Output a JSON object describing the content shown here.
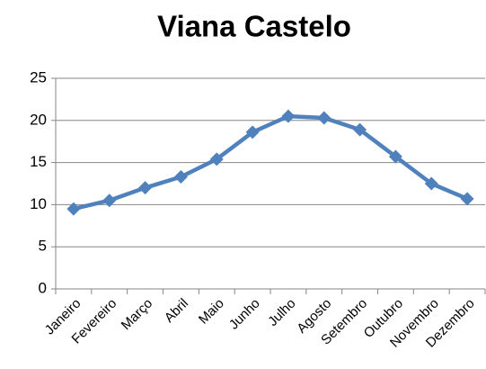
{
  "chart_data": {
    "type": "line",
    "title": "Viana Castelo",
    "categories": [
      "Janeiro",
      "Fevereiro",
      "Março",
      "Abril",
      "Maio",
      "Junho",
      "Julho",
      "Agosto",
      "Setembro",
      "Outubro",
      "Novembro",
      "Dezembro"
    ],
    "values": [
      9.5,
      10.5,
      12,
      13.3,
      15.4,
      18.6,
      20.5,
      20.3,
      18.9,
      15.7,
      12.5,
      10.7
    ],
    "color": "#4f81bd",
    "ylim": [
      0,
      25
    ],
    "yticks": [
      0,
      5,
      10,
      15,
      20,
      25
    ],
    "grid": true
  }
}
